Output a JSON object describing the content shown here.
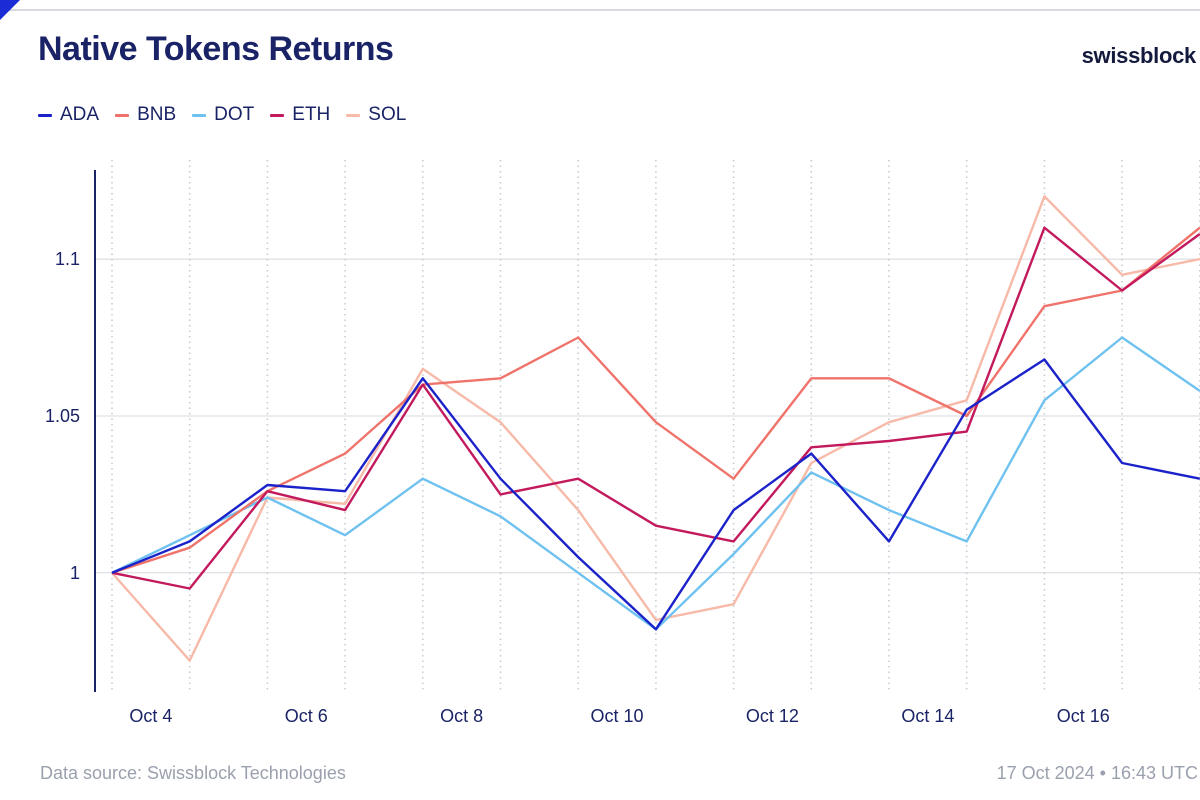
{
  "title": "Native Tokens Returns",
  "brand": "swissblock",
  "footer": {
    "source": "Data source: Swissblock Technologies",
    "timestamp": "17 Oct 2024 • 16:43 UTC"
  },
  "colors": {
    "accent": "#1b2bd6",
    "axis": "#1a2366"
  },
  "chart_data": {
    "type": "line",
    "title": "Native Tokens Returns",
    "xlabel": "",
    "ylabel": "",
    "x": [
      "Oct 3",
      "Oct 4",
      "Oct 5",
      "Oct 6",
      "Oct 7",
      "Oct 8",
      "Oct 9",
      "Oct 10",
      "Oct 11",
      "Oct 12",
      "Oct 13",
      "Oct 14",
      "Oct 15",
      "Oct 16",
      "Oct 17"
    ],
    "x_tick_labels": [
      "Oct 4",
      "Oct 6",
      "Oct 8",
      "Oct 10",
      "Oct 12",
      "Oct 14",
      "Oct 16"
    ],
    "y_ticks": [
      "1",
      "1.05",
      "1.1"
    ],
    "ylim": [
      0.962,
      1.13
    ],
    "grid": "vertical dotted daily gridlines, solid horizontal lines at y ticks",
    "legend_position": "top-left",
    "series": [
      {
        "name": "ADA",
        "color": "#1b22c9",
        "values": [
          1.0,
          1.01,
          1.028,
          1.026,
          1.062,
          1.03,
          1.005,
          0.982,
          1.02,
          1.038,
          1.01,
          1.052,
          1.068,
          1.035,
          1.03
        ]
      },
      {
        "name": "BNB",
        "color": "#f0736b",
        "values": [
          1.0,
          1.008,
          1.026,
          1.038,
          1.06,
          1.062,
          1.075,
          1.048,
          1.03,
          1.062,
          1.062,
          1.05,
          1.085,
          1.09,
          1.11
        ]
      },
      {
        "name": "DOT",
        "color": "#6fc2f0",
        "values": [
          1.0,
          1.012,
          1.024,
          1.012,
          1.03,
          1.018,
          1.0,
          0.982,
          1.006,
          1.032,
          1.02,
          1.01,
          1.055,
          1.075,
          1.058
        ]
      },
      {
        "name": "ETH",
        "color": "#c3195d",
        "values": [
          1.0,
          0.995,
          1.026,
          1.02,
          1.06,
          1.025,
          1.03,
          1.015,
          1.01,
          1.04,
          1.042,
          1.045,
          1.11,
          1.09,
          1.108
        ]
      },
      {
        "name": "SOL",
        "color": "#f7b9a8",
        "values": [
          1.0,
          0.972,
          1.024,
          1.022,
          1.065,
          1.048,
          1.02,
          0.985,
          0.99,
          1.035,
          1.048,
          1.055,
          1.12,
          1.095,
          1.1
        ]
      }
    ]
  }
}
